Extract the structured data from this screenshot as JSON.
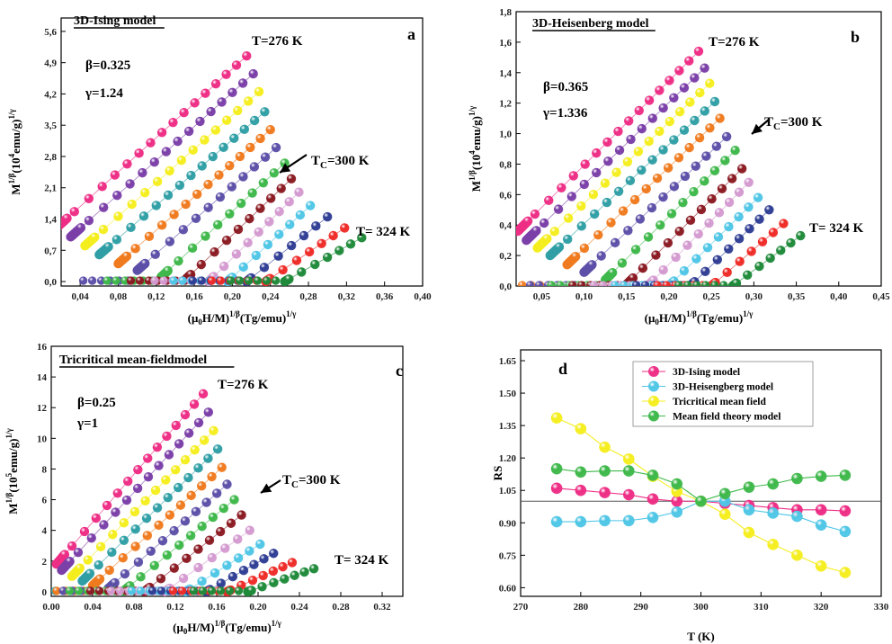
{
  "chart_data": [
    {
      "id": "a",
      "type": "scatter",
      "title": "3D-Ising model",
      "panel_letter": "a",
      "xlabel": "(μ0H/M)^(1/β)(Tg/emu)^(1/γ)",
      "xlabel_parts": {
        "pre": "(μ",
        "sub": "0",
        "mid": "H/M)",
        "sup1": "1/β",
        "post": "(Tg/emu)",
        "sup2": "1/γ"
      },
      "ylabel": "M^(1/β)(10^4emu/g)^(1/γ)",
      "ylabel_parts": {
        "base": "M",
        "sup1": "1/β",
        "mid": "(10",
        "sup2": "4",
        "post": "emu/g)",
        "sup3": "1/γ"
      },
      "xlim": [
        0.02,
        0.4
      ],
      "ylim": [
        -0.1,
        5.9
      ],
      "xticks": [
        "0,04",
        "0,08",
        "0,12",
        "0,16",
        "0,20",
        "0,24",
        "0,28",
        "0,32",
        "0,36",
        "0,40"
      ],
      "xtick_values": [
        0.04,
        0.08,
        0.12,
        0.16,
        0.2,
        0.24,
        0.28,
        0.32,
        0.36,
        0.4
      ],
      "yticks": [
        "0,0",
        "0,7",
        "1,4",
        "2,1",
        "2,8",
        "3,5",
        "4,2",
        "4,9",
        "5,6"
      ],
      "ytick_values": [
        0.0,
        0.7,
        1.4,
        2.1,
        2.8,
        3.5,
        4.2,
        4.9,
        5.6
      ],
      "params": [
        "β=0.325",
        "γ=1.24"
      ],
      "annotations": {
        "top": "T=276 K",
        "tc": "TC=300 K",
        "tc_pre": "T",
        "tc_sub": "C",
        "tc_post": "=300 K",
        "bottom": "T= 324 K"
      },
      "series": [
        {
          "temperature": 276,
          "color": "#ee2d85",
          "start": [
            0.015,
            1.2
          ],
          "end": [
            0.215,
            5.05
          ]
        },
        {
          "temperature": 280,
          "color": "#7b3fa8",
          "start": [
            0.03,
            1.0
          ],
          "end": [
            0.222,
            4.65
          ]
        },
        {
          "temperature": 284,
          "color": "#f5ee1e",
          "start": [
            0.045,
            0.8
          ],
          "end": [
            0.228,
            4.25
          ]
        },
        {
          "temperature": 288,
          "color": "#2f9fa5",
          "start": [
            0.06,
            0.6
          ],
          "end": [
            0.234,
            3.8
          ]
        },
        {
          "temperature": 292,
          "color": "#f07a1e",
          "start": [
            0.08,
            0.4
          ],
          "end": [
            0.24,
            3.4
          ]
        },
        {
          "temperature": 296,
          "color": "#5c4fa8",
          "start": [
            0.1,
            0.25
          ],
          "end": [
            0.246,
            3.0
          ]
        },
        {
          "temperature": 300,
          "color": "#3eb84a",
          "start": [
            0.125,
            0.1
          ],
          "end": [
            0.255,
            2.65
          ]
        },
        {
          "temperature": 304,
          "color": "#8b1a22",
          "start": [
            0.15,
            0.03
          ],
          "end": [
            0.262,
            2.3
          ]
        },
        {
          "temperature": 308,
          "color": "#d49ad0",
          "start": [
            0.175,
            0.0
          ],
          "end": [
            0.27,
            2.0
          ]
        },
        {
          "temperature": 312,
          "color": "#4fc6e6",
          "start": [
            0.195,
            0.0
          ],
          "end": [
            0.282,
            1.7
          ]
        },
        {
          "temperature": 316,
          "color": "#2f3d94",
          "start": [
            0.215,
            0.0
          ],
          "end": [
            0.3,
            1.45
          ]
        },
        {
          "temperature": 320,
          "color": "#ef2b27",
          "start": [
            0.235,
            0.0
          ],
          "end": [
            0.318,
            1.2
          ]
        },
        {
          "temperature": 324,
          "color": "#1f8a3a",
          "start": [
            0.255,
            0.0
          ],
          "end": [
            0.336,
            0.98
          ]
        }
      ]
    },
    {
      "id": "b",
      "type": "scatter",
      "title": "3D-Heisenberg model",
      "panel_letter": "b",
      "xlabel": "(μ0H/M)^(1/β)(Tg/emu)^(1/γ)",
      "xlabel_parts": {
        "pre": "(μ",
        "sub": "0",
        "mid": "H/M)",
        "sup1": "1/β",
        "post": "(Tg/emu)",
        "sup2": "1/γ"
      },
      "ylabel": "M^(1/β)(10^4emu/g)^(1/γ)",
      "ylabel_parts": {
        "base": "M",
        "sup1": "1/β",
        "mid": "(10",
        "sup2": "4",
        "post": "emu/g)",
        "sup3": "1/γ"
      },
      "xlim": [
        0.02,
        0.45
      ],
      "ylim": [
        0.0,
        1.8
      ],
      "xticks": [
        "0,05",
        "0,10",
        "0,15",
        "0,20",
        "0,25",
        "0,30",
        "0,35",
        "0,40",
        "0,45"
      ],
      "xtick_values": [
        0.05,
        0.1,
        0.15,
        0.2,
        0.25,
        0.3,
        0.35,
        0.4,
        0.45
      ],
      "yticks": [
        "0,0",
        "0,2",
        "0,4",
        "0,6",
        "0,8",
        "1,0",
        "1,2",
        "1,4",
        "1,6",
        "1,8"
      ],
      "ytick_values": [
        0.0,
        0.2,
        0.4,
        0.6,
        0.8,
        1.0,
        1.2,
        1.4,
        1.6,
        1.8
      ],
      "params": [
        "β=0.365",
        "γ=1.336"
      ],
      "annotations": {
        "top": "T=276 K",
        "tc": "TC=300 K",
        "tc_pre": "T",
        "tc_sub": "C",
        "tc_post": "=300 K",
        "bottom": "T= 324 K"
      },
      "series": [
        {
          "temperature": 276,
          "color": "#ee2d85",
          "start": [
            0.022,
            0.36
          ],
          "end": [
            0.235,
            1.54
          ]
        },
        {
          "temperature": 280,
          "color": "#7b3fa8",
          "start": [
            0.032,
            0.3
          ],
          "end": [
            0.242,
            1.43
          ]
        },
        {
          "temperature": 284,
          "color": "#f5ee1e",
          "start": [
            0.045,
            0.25
          ],
          "end": [
            0.248,
            1.33
          ]
        },
        {
          "temperature": 288,
          "color": "#2f9fa5",
          "start": [
            0.06,
            0.2
          ],
          "end": [
            0.254,
            1.21
          ]
        },
        {
          "temperature": 292,
          "color": "#f07a1e",
          "start": [
            0.08,
            0.14
          ],
          "end": [
            0.26,
            1.1
          ]
        },
        {
          "temperature": 296,
          "color": "#5c4fa8",
          "start": [
            0.1,
            0.09
          ],
          "end": [
            0.268,
            0.98
          ]
        },
        {
          "temperature": 300,
          "color": "#3eb84a",
          "start": [
            0.125,
            0.04
          ],
          "end": [
            0.278,
            0.89
          ]
        },
        {
          "temperature": 304,
          "color": "#8b1a22",
          "start": [
            0.15,
            0.01
          ],
          "end": [
            0.286,
            0.77
          ]
        },
        {
          "temperature": 308,
          "color": "#d49ad0",
          "start": [
            0.175,
            0.0
          ],
          "end": [
            0.294,
            0.68
          ]
        },
        {
          "temperature": 312,
          "color": "#4fc6e6",
          "start": [
            0.2,
            0.0
          ],
          "end": [
            0.305,
            0.58
          ]
        },
        {
          "temperature": 316,
          "color": "#2f3d94",
          "start": [
            0.225,
            0.0
          ],
          "end": [
            0.318,
            0.5
          ]
        },
        {
          "temperature": 320,
          "color": "#ef2b27",
          "start": [
            0.25,
            0.0
          ],
          "end": [
            0.335,
            0.41
          ]
        },
        {
          "temperature": 324,
          "color": "#1f8a3a",
          "start": [
            0.275,
            0.0
          ],
          "end": [
            0.355,
            0.33
          ]
        }
      ]
    },
    {
      "id": "c",
      "type": "scatter",
      "title": "Tricritical mean-fieldmodel",
      "panel_letter": "c",
      "xlabel": "(μ0H/M)^(1/β)(Tg/emu)^(1/γ)",
      "xlabel_parts": {
        "pre": "(μ",
        "sub": "0",
        "mid": "H/M)",
        "sup1": "1/β",
        "post": "(Tg/emu)",
        "sup2": "1/γ"
      },
      "ylabel": "M^(1/β)(10^5emu/g)^(1/γ)",
      "ylabel_parts": {
        "base": "M",
        "sup1": "1/β",
        "mid": "(10",
        "sup2": "5",
        "post": "emu/g)",
        "sup3": "1/γ"
      },
      "xlim": [
        0.0,
        0.34
      ],
      "ylim": [
        -0.3,
        16.0
      ],
      "xticks": [
        "0.00",
        "0.04",
        "0.08",
        "0.12",
        "0.16",
        "0.20",
        "0.24",
        "0.28",
        "0.32"
      ],
      "xtick_values": [
        0.0,
        0.04,
        0.08,
        0.12,
        0.16,
        0.2,
        0.24,
        0.28,
        0.32
      ],
      "yticks": [
        "0",
        "2",
        "4",
        "6",
        "8",
        "10",
        "12",
        "14",
        "16"
      ],
      "ytick_values": [
        0,
        2,
        4,
        6,
        8,
        10,
        12,
        14,
        16
      ],
      "params": [
        "β=0.25",
        "γ=1"
      ],
      "annotations": {
        "top": "T=276 K",
        "tc": "TC=300 K",
        "tc_pre": "T",
        "tc_sub": "C",
        "tc_post": "=300 K",
        "bottom": "T= 324 K"
      },
      "series": [
        {
          "temperature": 276,
          "color": "#ee2d85",
          "start": [
            0.005,
            1.8
          ],
          "end": [
            0.147,
            12.9
          ]
        },
        {
          "temperature": 280,
          "color": "#7b3fa8",
          "start": [
            0.01,
            1.4
          ],
          "end": [
            0.152,
            11.7
          ]
        },
        {
          "temperature": 284,
          "color": "#f5ee1e",
          "start": [
            0.02,
            1.0
          ],
          "end": [
            0.157,
            10.5
          ]
        },
        {
          "temperature": 288,
          "color": "#2f9fa5",
          "start": [
            0.03,
            0.7
          ],
          "end": [
            0.161,
            9.3
          ]
        },
        {
          "temperature": 292,
          "color": "#f07a1e",
          "start": [
            0.04,
            0.4
          ],
          "end": [
            0.165,
            8.1
          ]
        },
        {
          "temperature": 296,
          "color": "#5c4fa8",
          "start": [
            0.055,
            0.2
          ],
          "end": [
            0.17,
            7.0
          ]
        },
        {
          "temperature": 300,
          "color": "#3eb84a",
          "start": [
            0.07,
            0.05
          ],
          "end": [
            0.177,
            6.0
          ]
        },
        {
          "temperature": 304,
          "color": "#8b1a22",
          "start": [
            0.09,
            0.0
          ],
          "end": [
            0.184,
            5.0
          ]
        },
        {
          "temperature": 308,
          "color": "#d49ad0",
          "start": [
            0.11,
            0.0
          ],
          "end": [
            0.192,
            4.0
          ]
        },
        {
          "temperature": 312,
          "color": "#4fc6e6",
          "start": [
            0.13,
            0.0
          ],
          "end": [
            0.202,
            3.1
          ]
        },
        {
          "temperature": 316,
          "color": "#2f3d94",
          "start": [
            0.15,
            0.0
          ],
          "end": [
            0.215,
            2.5
          ]
        },
        {
          "temperature": 320,
          "color": "#ef2b27",
          "start": [
            0.17,
            0.0
          ],
          "end": [
            0.233,
            1.9
          ]
        },
        {
          "temperature": 324,
          "color": "#1f8a3a",
          "start": [
            0.19,
            0.0
          ],
          "end": [
            0.254,
            1.5
          ]
        }
      ]
    },
    {
      "id": "d",
      "type": "line",
      "panel_letter": "d",
      "xlabel": "T (K)",
      "ylabel": "RS",
      "xlim": [
        270,
        330
      ],
      "ylim": [
        0.56,
        1.7
      ],
      "xticks": [
        "270",
        "280",
        "290",
        "300",
        "310",
        "320",
        "330"
      ],
      "xtick_values": [
        270,
        280,
        290,
        300,
        310,
        320,
        330
      ],
      "yticks": [
        "0.60",
        "0.75",
        "0.90",
        "1.05",
        "1.20",
        "1.35",
        "1.50",
        "1.65"
      ],
      "ytick_values": [
        0.6,
        0.75,
        0.9,
        1.05,
        1.2,
        1.35,
        1.5,
        1.65
      ],
      "reference_line": 1.0,
      "legend": "top-right",
      "x": [
        276,
        280,
        284,
        288,
        292,
        296,
        300,
        304,
        308,
        312,
        316,
        320,
        324
      ],
      "series": [
        {
          "name": "3D-Ising model",
          "color": "#ee2d85",
          "values": [
            1.06,
            1.05,
            1.04,
            1.03,
            1.01,
            1.0,
            1.0,
            0.99,
            0.98,
            0.97,
            0.96,
            0.96,
            0.955
          ]
        },
        {
          "name": "3D-Heisengberg model",
          "color": "#4fc6e6",
          "values": [
            0.905,
            0.905,
            0.91,
            0.91,
            0.925,
            0.95,
            1.0,
            1.0,
            0.96,
            0.945,
            0.93,
            0.89,
            0.86
          ]
        },
        {
          "name": "Tricritical mean field",
          "color": "#f5ee1e",
          "values": [
            1.385,
            1.335,
            1.25,
            1.195,
            1.115,
            1.045,
            1.0,
            0.94,
            0.855,
            0.8,
            0.75,
            0.7,
            0.67
          ]
        },
        {
          "name": "Mean field theory model",
          "color": "#3eb84a",
          "values": [
            1.15,
            1.135,
            1.14,
            1.14,
            1.12,
            1.08,
            1.0,
            1.035,
            1.065,
            1.08,
            1.105,
            1.115,
            1.12
          ]
        }
      ]
    }
  ]
}
